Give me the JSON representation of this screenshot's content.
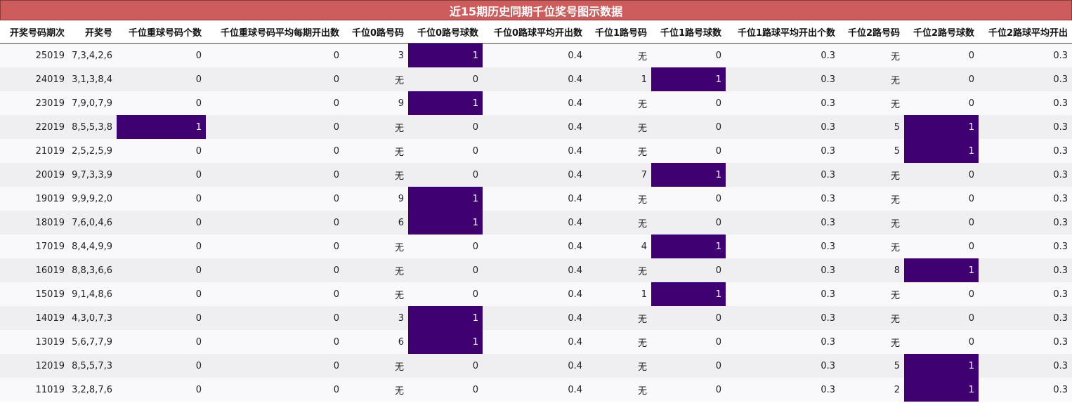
{
  "title": "近15期历史同期千位奖号图示数据",
  "colors": {
    "title_bg": "#cd5c5c",
    "highlight": "#3f0071"
  },
  "columns": [
    "开奖号码期次",
    "开奖号",
    "千位重球号码个数",
    "千位重球号码平均每期开出数",
    "千位0路号码",
    "千位0路号球数",
    "千位0路球平均开出数",
    "千位1路号码",
    "千位1路号球数",
    "千位1路球平均开出个数",
    "千位2路号码",
    "千位2路号球数",
    "千位2路球平均开出"
  ],
  "rows": [
    [
      "25019",
      "7,3,4,2,6",
      "0",
      "0",
      "3",
      "1",
      "0.4",
      "无",
      "0",
      "0.3",
      "无",
      "0",
      "0.3"
    ],
    [
      "24019",
      "3,1,3,8,4",
      "0",
      "0",
      "无",
      "0",
      "0.4",
      "1",
      "1",
      "0.3",
      "无",
      "0",
      "0.3"
    ],
    [
      "23019",
      "7,9,0,7,9",
      "0",
      "0",
      "9",
      "1",
      "0.4",
      "无",
      "0",
      "0.3",
      "无",
      "0",
      "0.3"
    ],
    [
      "22019",
      "8,5,5,3,8",
      "1",
      "0",
      "无",
      "0",
      "0.4",
      "无",
      "0",
      "0.3",
      "5",
      "1",
      "0.3"
    ],
    [
      "21019",
      "2,5,2,5,9",
      "0",
      "0",
      "无",
      "0",
      "0.4",
      "无",
      "0",
      "0.3",
      "5",
      "1",
      "0.3"
    ],
    [
      "20019",
      "9,7,3,3,9",
      "0",
      "0",
      "无",
      "0",
      "0.4",
      "7",
      "1",
      "0.3",
      "无",
      "0",
      "0.3"
    ],
    [
      "19019",
      "9,9,9,2,0",
      "0",
      "0",
      "9",
      "1",
      "0.4",
      "无",
      "0",
      "0.3",
      "无",
      "0",
      "0.3"
    ],
    [
      "18019",
      "7,6,0,4,6",
      "0",
      "0",
      "6",
      "1",
      "0.4",
      "无",
      "0",
      "0.3",
      "无",
      "0",
      "0.3"
    ],
    [
      "17019",
      "8,4,4,9,9",
      "0",
      "0",
      "无",
      "0",
      "0.4",
      "4",
      "1",
      "0.3",
      "无",
      "0",
      "0.3"
    ],
    [
      "16019",
      "8,8,3,6,6",
      "0",
      "0",
      "无",
      "0",
      "0.4",
      "无",
      "0",
      "0.3",
      "8",
      "1",
      "0.3"
    ],
    [
      "15019",
      "9,1,4,8,6",
      "0",
      "0",
      "无",
      "0",
      "0.4",
      "1",
      "1",
      "0.3",
      "无",
      "0",
      "0.3"
    ],
    [
      "14019",
      "4,3,0,7,3",
      "0",
      "0",
      "3",
      "1",
      "0.4",
      "无",
      "0",
      "0.3",
      "无",
      "0",
      "0.3"
    ],
    [
      "13019",
      "5,6,7,7,9",
      "0",
      "0",
      "6",
      "1",
      "0.4",
      "无",
      "0",
      "0.3",
      "无",
      "0",
      "0.3"
    ],
    [
      "12019",
      "8,5,5,7,3",
      "0",
      "0",
      "无",
      "0",
      "0.4",
      "无",
      "0",
      "0.3",
      "5",
      "1",
      "0.3"
    ],
    [
      "11019",
      "3,2,8,7,6",
      "0",
      "0",
      "无",
      "0",
      "0.4",
      "无",
      "0",
      "0.3",
      "2",
      "1",
      "0.3"
    ]
  ]
}
